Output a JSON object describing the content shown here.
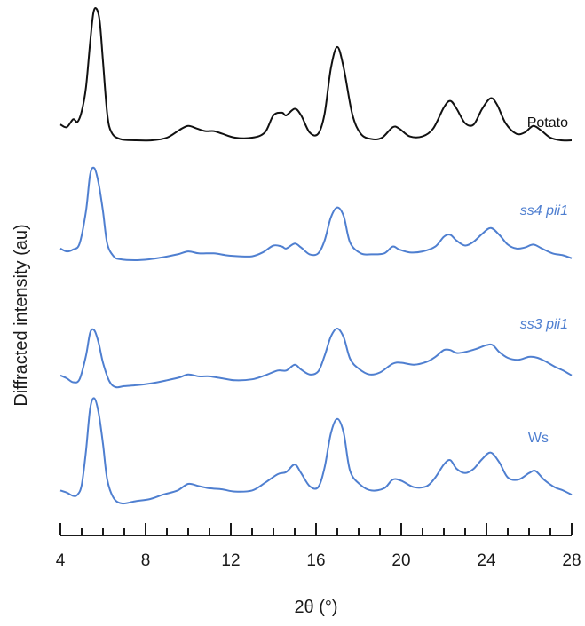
{
  "chart_data": {
    "type": "line",
    "title": "",
    "xlabel": "2θ (°)",
    "ylabel": "Diffracted intensity (au)",
    "xlim": [
      4,
      28
    ],
    "x_ticks": [
      4,
      8,
      12,
      16,
      20,
      24,
      28
    ],
    "x_minor_step": 1,
    "y_axis_visible": false,
    "grid": false,
    "legend": "inline labels at right of each trace",
    "series": [
      {
        "name": "Potato",
        "color": "#111111",
        "italic": false,
        "points": [
          [
            4.0,
            0.12
          ],
          [
            4.3,
            0.1
          ],
          [
            4.6,
            0.16
          ],
          [
            4.8,
            0.14
          ],
          [
            5.0,
            0.22
          ],
          [
            5.2,
            0.4
          ],
          [
            5.4,
            0.75
          ],
          [
            5.55,
            0.97
          ],
          [
            5.7,
            1.0
          ],
          [
            5.85,
            0.9
          ],
          [
            6.0,
            0.6
          ],
          [
            6.2,
            0.2
          ],
          [
            6.4,
            0.06
          ],
          [
            6.8,
            0.01
          ],
          [
            7.5,
            0.0
          ],
          [
            8.3,
            0.0
          ],
          [
            9.0,
            0.02
          ],
          [
            9.6,
            0.08
          ],
          [
            10.0,
            0.11
          ],
          [
            10.4,
            0.09
          ],
          [
            10.8,
            0.07
          ],
          [
            11.2,
            0.07
          ],
          [
            11.6,
            0.05
          ],
          [
            12.2,
            0.02
          ],
          [
            13.0,
            0.02
          ],
          [
            13.6,
            0.06
          ],
          [
            14.0,
            0.19
          ],
          [
            14.4,
            0.21
          ],
          [
            14.6,
            0.19
          ],
          [
            15.0,
            0.24
          ],
          [
            15.3,
            0.19
          ],
          [
            15.7,
            0.06
          ],
          [
            16.1,
            0.05
          ],
          [
            16.4,
            0.2
          ],
          [
            16.7,
            0.55
          ],
          [
            17.0,
            0.71
          ],
          [
            17.3,
            0.55
          ],
          [
            17.7,
            0.2
          ],
          [
            18.1,
            0.05
          ],
          [
            18.6,
            0.01
          ],
          [
            19.1,
            0.02
          ],
          [
            19.6,
            0.1
          ],
          [
            19.9,
            0.09
          ],
          [
            20.4,
            0.03
          ],
          [
            21.0,
            0.03
          ],
          [
            21.5,
            0.09
          ],
          [
            22.0,
            0.25
          ],
          [
            22.3,
            0.3
          ],
          [
            22.6,
            0.24
          ],
          [
            23.0,
            0.13
          ],
          [
            23.4,
            0.12
          ],
          [
            23.8,
            0.24
          ],
          [
            24.2,
            0.32
          ],
          [
            24.5,
            0.27
          ],
          [
            24.9,
            0.13
          ],
          [
            25.4,
            0.05
          ],
          [
            25.8,
            0.06
          ],
          [
            26.2,
            0.11
          ],
          [
            26.6,
            0.07
          ],
          [
            27.0,
            0.02
          ],
          [
            27.5,
            0.0
          ],
          [
            28.0,
            0.0
          ]
        ]
      },
      {
        "name": "ss4 pii1",
        "color": "#4f7fd0",
        "italic": true,
        "points": [
          [
            4.0,
            0.12
          ],
          [
            4.3,
            0.09
          ],
          [
            4.6,
            0.11
          ],
          [
            4.9,
            0.17
          ],
          [
            5.2,
            0.5
          ],
          [
            5.4,
            0.88
          ],
          [
            5.6,
            0.94
          ],
          [
            5.8,
            0.78
          ],
          [
            6.0,
            0.5
          ],
          [
            6.2,
            0.17
          ],
          [
            6.5,
            0.04
          ],
          [
            6.8,
            0.01
          ],
          [
            7.5,
            0.0
          ],
          [
            8.2,
            0.01
          ],
          [
            8.8,
            0.03
          ],
          [
            9.5,
            0.06
          ],
          [
            10.0,
            0.09
          ],
          [
            10.5,
            0.07
          ],
          [
            11.2,
            0.07
          ],
          [
            11.8,
            0.05
          ],
          [
            12.4,
            0.04
          ],
          [
            13.0,
            0.04
          ],
          [
            13.5,
            0.08
          ],
          [
            14.0,
            0.15
          ],
          [
            14.4,
            0.14
          ],
          [
            14.6,
            0.12
          ],
          [
            15.0,
            0.17
          ],
          [
            15.3,
            0.13
          ],
          [
            15.7,
            0.06
          ],
          [
            16.1,
            0.07
          ],
          [
            16.4,
            0.2
          ],
          [
            16.7,
            0.44
          ],
          [
            17.0,
            0.54
          ],
          [
            17.3,
            0.45
          ],
          [
            17.6,
            0.18
          ],
          [
            18.1,
            0.07
          ],
          [
            18.6,
            0.06
          ],
          [
            19.2,
            0.07
          ],
          [
            19.6,
            0.14
          ],
          [
            19.9,
            0.11
          ],
          [
            20.4,
            0.08
          ],
          [
            21.0,
            0.09
          ],
          [
            21.6,
            0.14
          ],
          [
            22.0,
            0.24
          ],
          [
            22.3,
            0.26
          ],
          [
            22.6,
            0.2
          ],
          [
            23.0,
            0.15
          ],
          [
            23.4,
            0.19
          ],
          [
            23.8,
            0.27
          ],
          [
            24.2,
            0.33
          ],
          [
            24.6,
            0.26
          ],
          [
            25.0,
            0.16
          ],
          [
            25.4,
            0.12
          ],
          [
            25.8,
            0.13
          ],
          [
            26.2,
            0.16
          ],
          [
            26.6,
            0.12
          ],
          [
            27.1,
            0.07
          ],
          [
            27.6,
            0.05
          ],
          [
            28.0,
            0.02
          ]
        ]
      },
      {
        "name": "ss3 pii1",
        "color": "#4f7fd0",
        "italic": true,
        "points": [
          [
            4.0,
            0.12
          ],
          [
            4.3,
            0.09
          ],
          [
            4.6,
            0.05
          ],
          [
            4.9,
            0.08
          ],
          [
            5.2,
            0.32
          ],
          [
            5.4,
            0.56
          ],
          [
            5.6,
            0.58
          ],
          [
            5.8,
            0.45
          ],
          [
            6.0,
            0.25
          ],
          [
            6.3,
            0.06
          ],
          [
            6.6,
            0.0
          ],
          [
            7.0,
            0.01
          ],
          [
            7.6,
            0.02
          ],
          [
            8.3,
            0.04
          ],
          [
            9.0,
            0.07
          ],
          [
            9.6,
            0.1
          ],
          [
            10.0,
            0.13
          ],
          [
            10.5,
            0.11
          ],
          [
            11.0,
            0.11
          ],
          [
            11.6,
            0.09
          ],
          [
            12.2,
            0.07
          ],
          [
            13.0,
            0.08
          ],
          [
            13.6,
            0.12
          ],
          [
            14.2,
            0.17
          ],
          [
            14.6,
            0.17
          ],
          [
            15.0,
            0.23
          ],
          [
            15.3,
            0.18
          ],
          [
            15.7,
            0.13
          ],
          [
            16.1,
            0.16
          ],
          [
            16.4,
            0.32
          ],
          [
            16.7,
            0.52
          ],
          [
            17.0,
            0.6
          ],
          [
            17.3,
            0.51
          ],
          [
            17.6,
            0.29
          ],
          [
            18.0,
            0.19
          ],
          [
            18.5,
            0.13
          ],
          [
            19.0,
            0.15
          ],
          [
            19.6,
            0.24
          ],
          [
            20.0,
            0.25
          ],
          [
            20.6,
            0.23
          ],
          [
            21.2,
            0.26
          ],
          [
            21.6,
            0.31
          ],
          [
            22.0,
            0.38
          ],
          [
            22.3,
            0.38
          ],
          [
            22.6,
            0.35
          ],
          [
            23.0,
            0.36
          ],
          [
            23.5,
            0.39
          ],
          [
            24.0,
            0.43
          ],
          [
            24.3,
            0.43
          ],
          [
            24.6,
            0.36
          ],
          [
            25.0,
            0.3
          ],
          [
            25.5,
            0.28
          ],
          [
            26.0,
            0.31
          ],
          [
            26.4,
            0.3
          ],
          [
            26.8,
            0.26
          ],
          [
            27.2,
            0.21
          ],
          [
            27.6,
            0.17
          ],
          [
            28.0,
            0.12
          ]
        ]
      },
      {
        "name": "Ws",
        "color": "#4f7fd0",
        "italic": false,
        "points": [
          [
            4.0,
            0.12
          ],
          [
            4.3,
            0.1
          ],
          [
            4.6,
            0.07
          ],
          [
            4.8,
            0.08
          ],
          [
            5.0,
            0.17
          ],
          [
            5.2,
            0.48
          ],
          [
            5.4,
            0.88
          ],
          [
            5.6,
            0.97
          ],
          [
            5.8,
            0.83
          ],
          [
            6.0,
            0.55
          ],
          [
            6.2,
            0.22
          ],
          [
            6.5,
            0.05
          ],
          [
            6.9,
            0.0
          ],
          [
            7.5,
            0.02
          ],
          [
            8.2,
            0.04
          ],
          [
            8.8,
            0.08
          ],
          [
            9.5,
            0.12
          ],
          [
            10.0,
            0.18
          ],
          [
            10.5,
            0.16
          ],
          [
            11.0,
            0.14
          ],
          [
            11.6,
            0.13
          ],
          [
            12.2,
            0.11
          ],
          [
            13.0,
            0.12
          ],
          [
            13.6,
            0.19
          ],
          [
            14.2,
            0.27
          ],
          [
            14.6,
            0.29
          ],
          [
            15.0,
            0.36
          ],
          [
            15.3,
            0.28
          ],
          [
            15.7,
            0.16
          ],
          [
            16.1,
            0.15
          ],
          [
            16.4,
            0.33
          ],
          [
            16.7,
            0.65
          ],
          [
            17.0,
            0.78
          ],
          [
            17.3,
            0.65
          ],
          [
            17.6,
            0.3
          ],
          [
            18.1,
            0.17
          ],
          [
            18.6,
            0.12
          ],
          [
            19.2,
            0.14
          ],
          [
            19.6,
            0.22
          ],
          [
            20.0,
            0.21
          ],
          [
            20.6,
            0.15
          ],
          [
            21.2,
            0.16
          ],
          [
            21.6,
            0.24
          ],
          [
            22.0,
            0.36
          ],
          [
            22.3,
            0.4
          ],
          [
            22.6,
            0.32
          ],
          [
            23.0,
            0.28
          ],
          [
            23.4,
            0.32
          ],
          [
            23.8,
            0.41
          ],
          [
            24.2,
            0.47
          ],
          [
            24.6,
            0.38
          ],
          [
            25.0,
            0.24
          ],
          [
            25.5,
            0.22
          ],
          [
            26.0,
            0.28
          ],
          [
            26.3,
            0.3
          ],
          [
            26.7,
            0.22
          ],
          [
            27.2,
            0.15
          ],
          [
            27.6,
            0.12
          ],
          [
            28.0,
            0.08
          ]
        ]
      }
    ]
  }
}
